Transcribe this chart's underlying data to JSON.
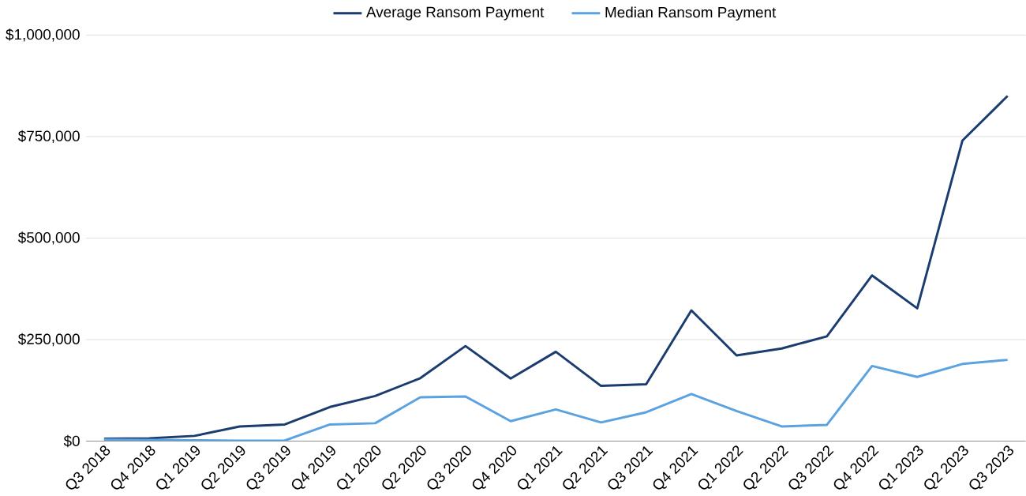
{
  "chart_data": {
    "type": "line",
    "categories": [
      "Q3 2018",
      "Q4 2018",
      "Q1 2019",
      "Q2 2019",
      "Q3 2019",
      "Q4 2019",
      "Q1 2020",
      "Q2 2020",
      "Q3 2020",
      "Q4 2020",
      "Q1 2021",
      "Q2 2021",
      "Q3 2021",
      "Q4 2021",
      "Q1 2022",
      "Q2 2022",
      "Q3 2022",
      "Q4 2022",
      "Q1 2023",
      "Q2 2023",
      "Q3 2023"
    ],
    "series": [
      {
        "name": "Average Ransom Payment",
        "color": "#1b3c6f",
        "values": [
          6000,
          6700,
          12800,
          36000,
          41000,
          84000,
          111000,
          155000,
          234000,
          154000,
          220000,
          136000,
          140000,
          322000,
          211000,
          228000,
          258000,
          408000,
          327000,
          740000,
          850000
        ]
      },
      {
        "name": "Median Ransom Payment",
        "color": "#5aa2e0",
        "values": [
          4000,
          3000,
          2000,
          1000,
          1500,
          41000,
          44000,
          108000,
          110000,
          49000,
          78000,
          46000,
          71000,
          116000,
          74000,
          36000,
          40000,
          185000,
          158000,
          190000,
          200000
        ]
      }
    ],
    "ylim": [
      0,
      1000000
    ],
    "yticks": [
      {
        "value": 0,
        "label": "$0"
      },
      {
        "value": 250000,
        "label": "$250,000"
      },
      {
        "value": 500000,
        "label": "$500,000"
      },
      {
        "value": 750000,
        "label": "$750,000"
      },
      {
        "value": 1000000,
        "label": "$1,000,000"
      }
    ],
    "grid": "y",
    "legend": "top",
    "marker": "none",
    "line_style": "solid"
  }
}
